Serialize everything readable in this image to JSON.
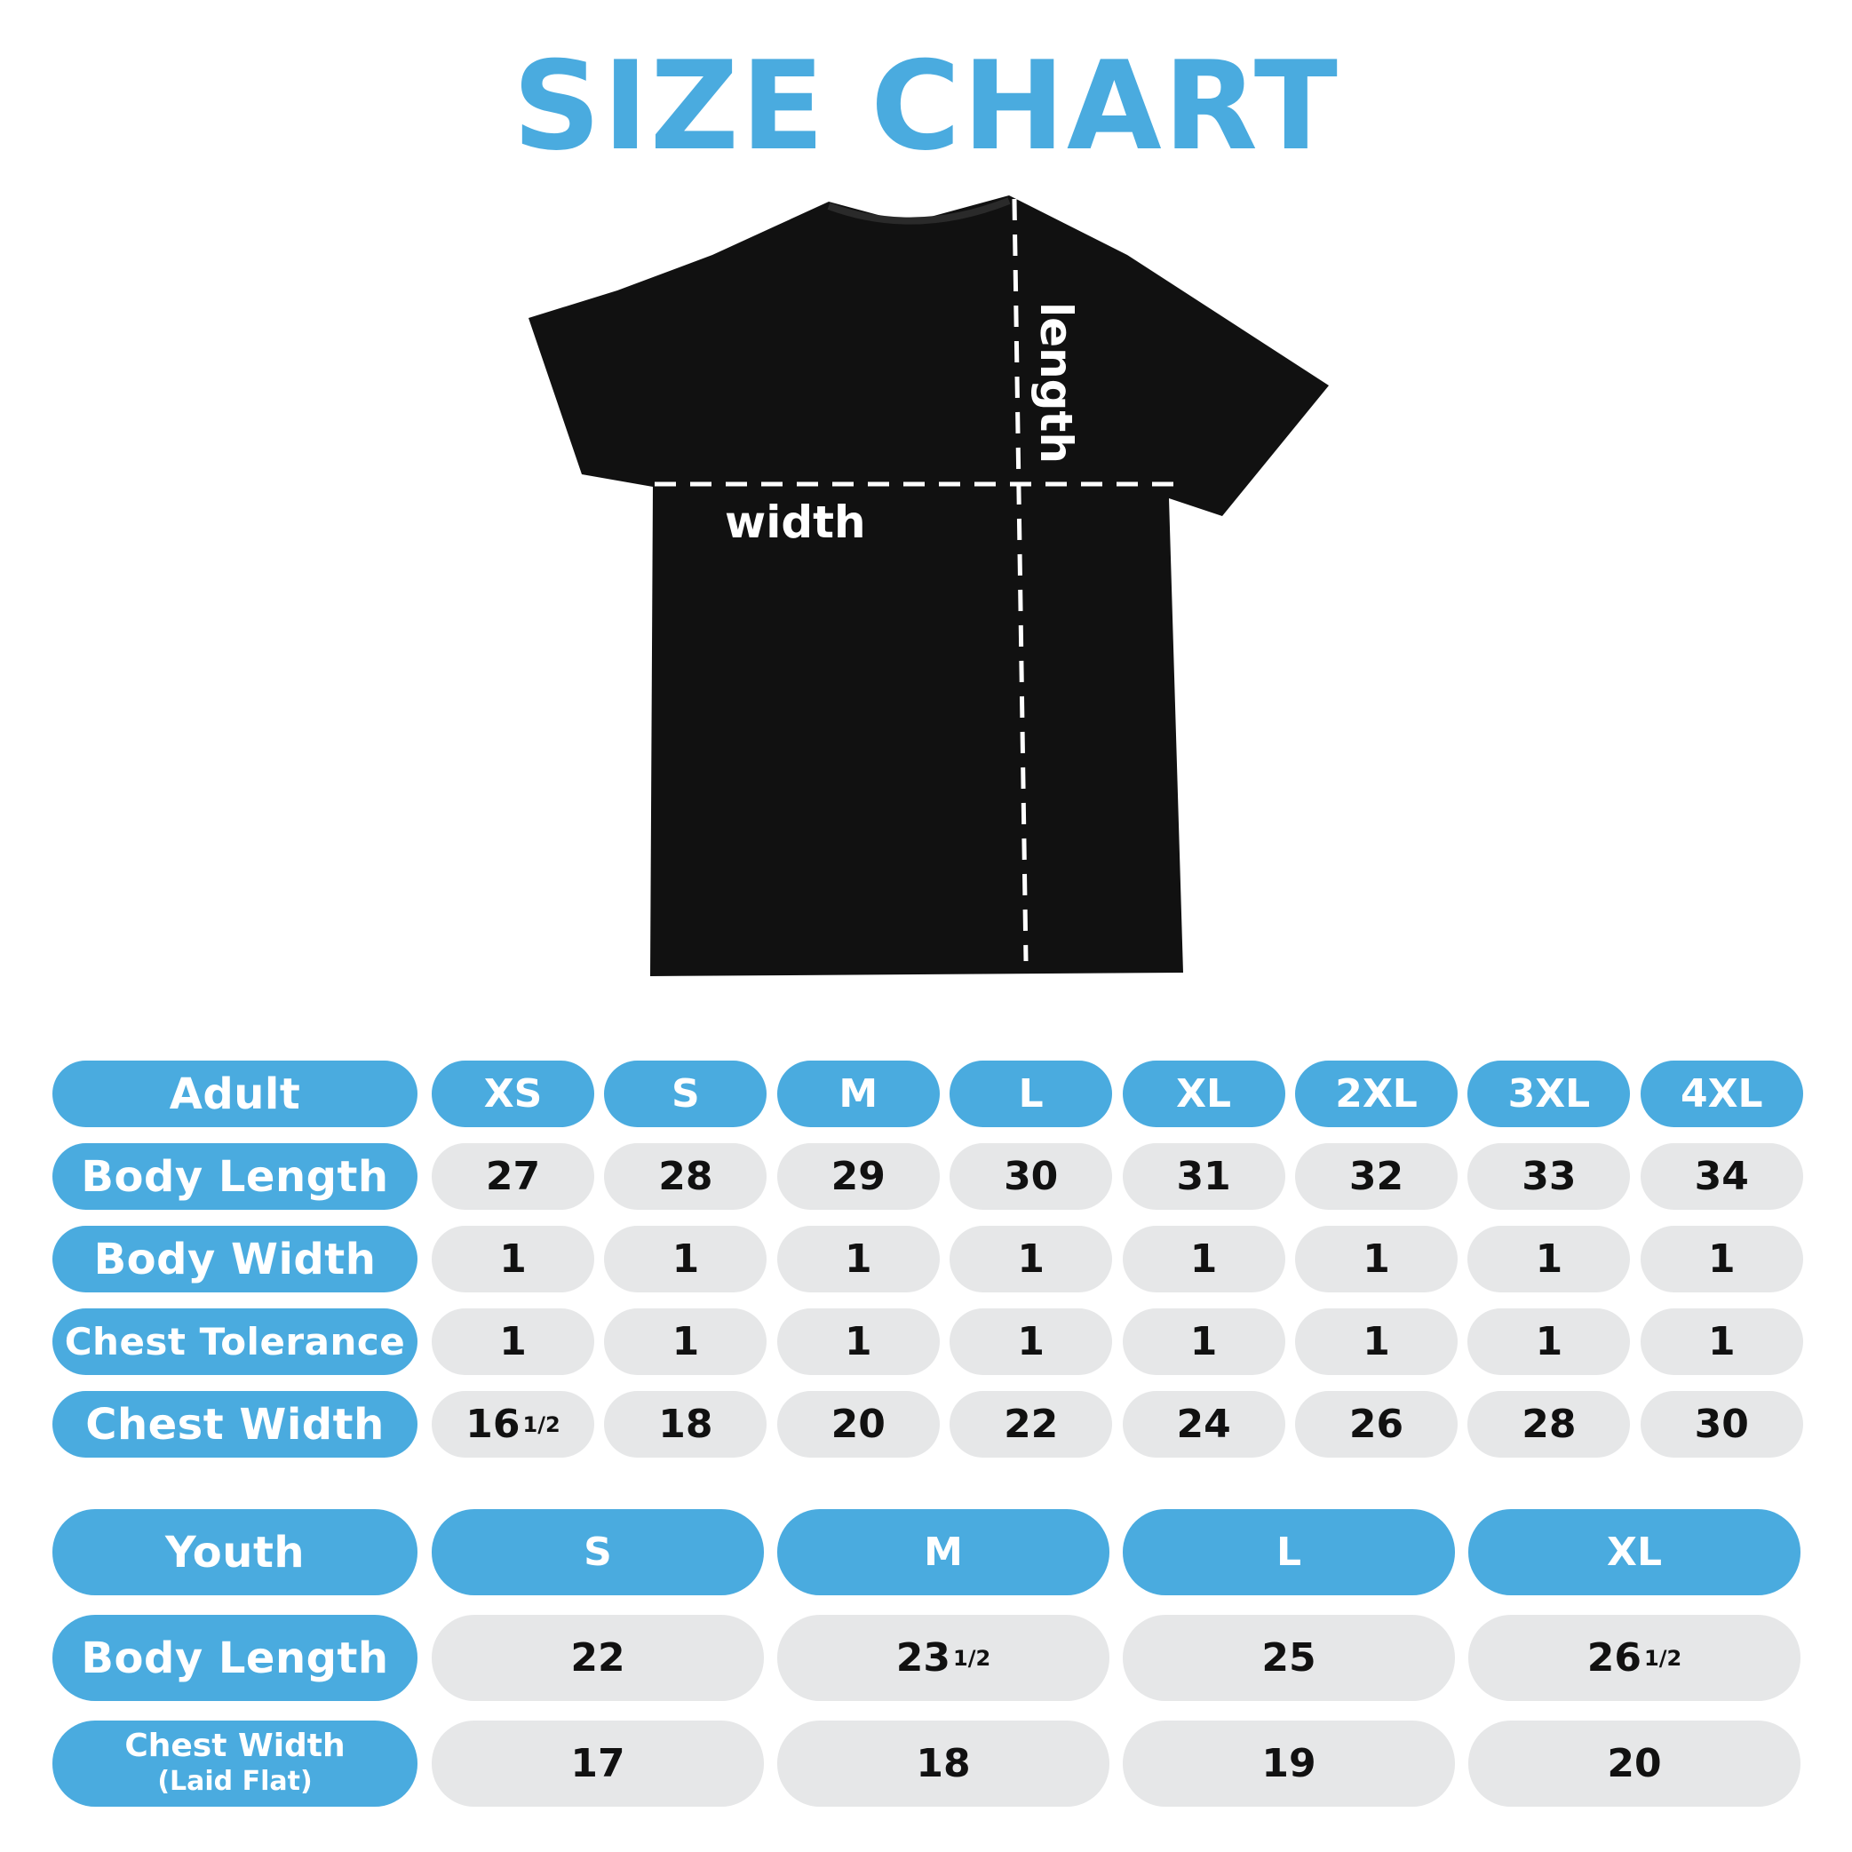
{
  "title": "SIZE CHART",
  "shirt": {
    "length_label": "length",
    "width_label": "width",
    "shirt_color": "#111111"
  },
  "colors": {
    "accent": "#4aabdf",
    "cell": "#e6e7e8"
  },
  "adult": {
    "header": "Adult",
    "sizes": [
      "XS",
      "S",
      "M",
      "L",
      "XL",
      "2XL",
      "3XL",
      "4XL"
    ],
    "rows": [
      {
        "label": "Body Length",
        "values": [
          "27",
          "28",
          "29",
          "30",
          "31",
          "32",
          "33",
          "34"
        ]
      },
      {
        "label": "Body Width",
        "values": [
          "1",
          "1",
          "1",
          "1",
          "1",
          "1",
          "1",
          "1"
        ]
      },
      {
        "label": "Chest Tolerance",
        "values": [
          "1",
          "1",
          "1",
          "1",
          "1",
          "1",
          "1",
          "1"
        ]
      },
      {
        "label": "Chest Width",
        "values": [
          "16 1/2",
          "18",
          "20",
          "22",
          "24",
          "26",
          "28",
          "30"
        ]
      }
    ]
  },
  "youth": {
    "header": "Youth",
    "sizes": [
      "S",
      "M",
      "L",
      "XL"
    ],
    "rows": [
      {
        "label": "Body Length",
        "values": [
          "22",
          "23 1/2",
          "25",
          "26 1/2"
        ]
      },
      {
        "label": "Chest Width",
        "sublabel": "(Laid Flat)",
        "values": [
          "17",
          "18",
          "19",
          "20"
        ]
      }
    ]
  }
}
